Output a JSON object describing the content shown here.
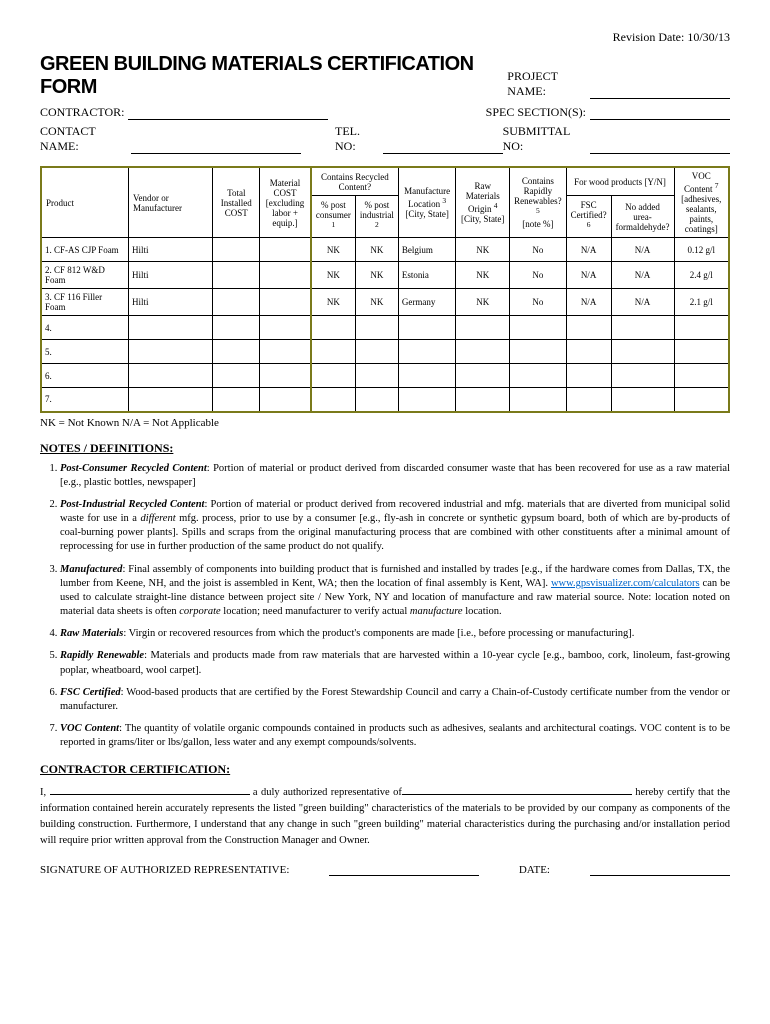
{
  "revision": "Revision Date: 10/30/13",
  "title": "GREEN BUILDING MATERIALS CERTIFICATION FORM",
  "fields": {
    "project_name": "PROJECT NAME:",
    "contractor": "CONTRACTOR:",
    "spec_sections": "SPEC SECTION(S):",
    "contact_name": "CONTACT NAME:",
    "tel_no": "TEL. NO:",
    "submittal_no": "SUBMITTAL NO:"
  },
  "headers": {
    "product": "Product",
    "vendor": "Vendor or Manufacturer",
    "total_cost": "Total Installed COST",
    "material_cost": "Material COST [excluding labor + equip.]",
    "contains_recycled": "Contains Recycled Content?",
    "post_consumer": "% post consumer",
    "post_industrial": "% post industrial",
    "manufacture_loc": "Manufacture Location",
    "city_state": "[City, State]",
    "raw_materials": "Raw Materials Origin",
    "rapidly_renew": "Contains Rapidly Renewables?",
    "rapidly_note": "[note %]",
    "wood_products": "For wood products [Y/N]",
    "fsc": "FSC Certified?",
    "urea": "No added urea-formaldehyde?",
    "voc": "VOC Content",
    "voc_note": "[adhesives, sealants, paints, coatings]",
    "sup1": "1",
    "sup2": "2",
    "sup3": "3",
    "sup4": "4",
    "sup5": "5",
    "sup6": "6",
    "sup7": "7"
  },
  "rows": [
    {
      "n": "1.",
      "product": "CF-AS CJP Foam",
      "vendor": "Hilti",
      "pc": "NK",
      "pi": "NK",
      "loc": "Belgium",
      "raw": "NK",
      "renew": "No",
      "fsc": "N/A",
      "urea": "N/A",
      "voc": "0.12 g/l"
    },
    {
      "n": "2.",
      "product": "CF 812 W&D Foam",
      "vendor": "Hilti",
      "pc": "NK",
      "pi": "NK",
      "loc": "Estonia",
      "raw": "NK",
      "renew": "No",
      "fsc": "N/A",
      "urea": "N/A",
      "voc": "2.4 g/l"
    },
    {
      "n": "3.",
      "product": "CF 116 Filler Foam",
      "vendor": "Hilti",
      "pc": "NK",
      "pi": "NK",
      "loc": "Germany",
      "raw": "NK",
      "renew": "No",
      "fsc": "N/A",
      "urea": "N/A",
      "voc": "2.1 g/l"
    },
    {
      "n": "4.",
      "product": "",
      "vendor": "",
      "pc": "",
      "pi": "",
      "loc": "",
      "raw": "",
      "renew": "",
      "fsc": "",
      "urea": "",
      "voc": ""
    },
    {
      "n": "5.",
      "product": "",
      "vendor": "",
      "pc": "",
      "pi": "",
      "loc": "",
      "raw": "",
      "renew": "",
      "fsc": "",
      "urea": "",
      "voc": ""
    },
    {
      "n": "6.",
      "product": "",
      "vendor": "",
      "pc": "",
      "pi": "",
      "loc": "",
      "raw": "",
      "renew": "",
      "fsc": "",
      "urea": "",
      "voc": ""
    },
    {
      "n": "7.",
      "product": "",
      "vendor": "",
      "pc": "",
      "pi": "",
      "loc": "",
      "raw": "",
      "renew": "",
      "fsc": "",
      "urea": "",
      "voc": ""
    }
  ],
  "legend": "NK = Not Known   N/A = Not Applicable",
  "notes_head": "NOTES / DEFINITIONS:",
  "notes": [
    {
      "term": "Post-Consumer Recycled Content",
      "body": ":  Portion of material or product derived from discarded consumer waste that has been recovered for use as a raw material [e.g., plastic bottles, newspaper]"
    },
    {
      "term": "Post-Industrial Recycled Content",
      "body": ":  Portion of material or product derived from recovered industrial and mfg. materials that are diverted from municipal solid waste for use in a ",
      "body2": " mfg. process, prior to use by a consumer [e.g., fly-ash in concrete or synthetic gypsum board, both of which are by-products of coal-burning power plants]. Spills and scraps from the original manufacturing process that are combined with other constituents after a minimal amount of reprocessing for use in further production of the same product do not qualify.",
      "italic": "different"
    },
    {
      "term": "Manufactured",
      "body": ":  Final assembly of components into building product that is furnished and installed by trades [e.g., if the hardware comes from Dallas, TX, the lumber from Keene, NH, and the joist is assembled in Kent, WA; then the location of final assembly is Kent, WA].  ",
      "link": "www.gpsvisualizer.com/calculators",
      "body2": " can be used to calculate straight-line distance between project site / New York, NY and location of manufacture and raw material source.  Note: location noted on material data sheets is often ",
      "italic": "corporate",
      "body3": " location; need manufacturer to verify actual ",
      "italic2": "manufacture",
      "body4": " location."
    },
    {
      "term": "Raw Materials",
      "body": ":  Virgin or recovered resources from which the product's components are made [i.e., before processing or manufacturing]."
    },
    {
      "term": "Rapidly Renewable",
      "body": ":  Materials and products made from raw materials that are harvested within a 10-year cycle [e.g., bamboo, cork, linoleum, fast-growing poplar, wheatboard, wool carpet]."
    },
    {
      "term": "FSC Certified",
      "body": ":  Wood-based products that are certified by the Forest Stewardship Council and carry a Chain-of-Custody certificate number from the vendor or manufacturer."
    },
    {
      "term": "VOC Content",
      "body": ":  The quantity of volatile organic compounds contained in products such as adhesives, sealants and architectural coatings. VOC content is to be reported in grams/liter or lbs/gallon, less water and any exempt compounds/solvents."
    }
  ],
  "cert_head": "CONTRACTOR CERTIFICATION:",
  "cert": {
    "p1": "I, ",
    "p2": " a duly authorized representative of",
    "p3": " hereby certify that the information contained herein accurately represents the listed \"green building\" characteristics of the materials to be provided by our company as components of the building construction. Furthermore, I understand that any change in such \"green building\" material characteristics during the purchasing and/or installation period will require prior written approval from the Construction Manager and Owner.",
    "sig": "SIGNATURE OF AUTHORIZED REPRESENTATIVE:",
    "date": "DATE:"
  }
}
